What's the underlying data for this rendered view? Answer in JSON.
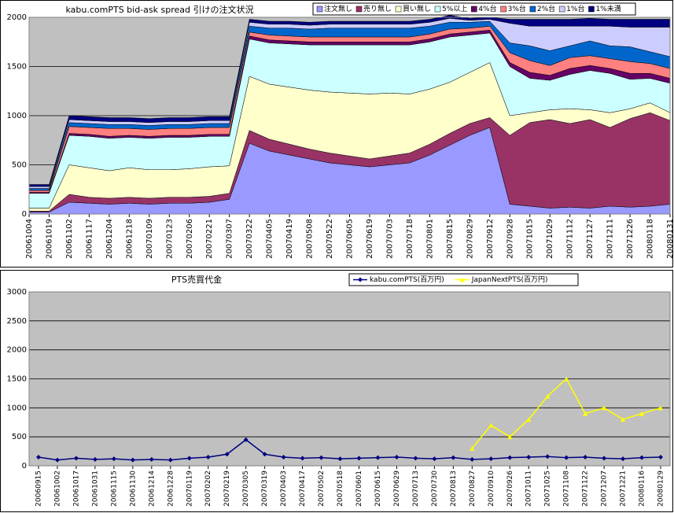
{
  "chart_data": [
    {
      "type": "area",
      "stacked": true,
      "grid": true,
      "title": "kabu.comPTS bid-ask spread 引けの注文状況",
      "categories": [
        "20061004",
        "20061019",
        "20061102",
        "20061117",
        "20061204",
        "20061218",
        "20070109",
        "20070123",
        "20070206",
        "20070221",
        "20070307",
        "20070322",
        "20070405",
        "20070419",
        "20070508",
        "20070522",
        "20070605",
        "20070619",
        "20070703",
        "20070718",
        "20070801",
        "20070815",
        "20070829",
        "20070912",
        "20070928",
        "20071015",
        "20071029",
        "20071112",
        "20071127",
        "20071211",
        "20071226",
        "20080118",
        "20080131"
      ],
      "ylim": [
        0,
        2000
      ],
      "yticks": [
        0,
        500,
        1000,
        1500,
        2000
      ],
      "series": [
        {
          "name": "注文無し",
          "color": "#9999ff",
          "values": [
            20,
            20,
            120,
            110,
            100,
            110,
            100,
            110,
            110,
            120,
            150,
            720,
            640,
            600,
            560,
            520,
            500,
            480,
            500,
            520,
            600,
            700,
            800,
            880,
            100,
            80,
            60,
            70,
            60,
            80,
            70,
            80,
            100
          ]
        },
        {
          "name": "売り無し",
          "color": "#993366",
          "values": [
            10,
            10,
            80,
            60,
            60,
            60,
            60,
            60,
            60,
            60,
            60,
            130,
            120,
            110,
            100,
            100,
            90,
            80,
            90,
            100,
            110,
            120,
            120,
            100,
            700,
            850,
            900,
            850,
            900,
            800,
            900,
            950,
            850
          ]
        },
        {
          "name": "買い無し",
          "color": "#ffffcc",
          "values": [
            30,
            30,
            300,
            300,
            280,
            300,
            290,
            280,
            290,
            300,
            280,
            550,
            560,
            580,
            600,
            620,
            640,
            660,
            640,
            600,
            560,
            520,
            520,
            560,
            200,
            100,
            100,
            150,
            100,
            150,
            100,
            100,
            80
          ]
        },
        {
          "name": "5%以上",
          "color": "#ccffff",
          "values": [
            150,
            150,
            300,
            320,
            330,
            310,
            320,
            330,
            320,
            310,
            300,
            380,
            420,
            440,
            460,
            480,
            490,
            500,
            490,
            500,
            480,
            460,
            380,
            300,
            500,
            350,
            300,
            350,
            400,
            400,
            300,
            250,
            300
          ]
        },
        {
          "name": "4%台",
          "color": "#660066",
          "values": [
            10,
            10,
            20,
            20,
            20,
            20,
            20,
            20,
            20,
            20,
            20,
            30,
            30,
            30,
            30,
            30,
            30,
            30,
            30,
            30,
            30,
            30,
            30,
            30,
            40,
            60,
            50,
            60,
            50,
            50,
            60,
            50,
            50
          ]
        },
        {
          "name": "3%台",
          "color": "#ff8080",
          "values": [
            20,
            20,
            70,
            70,
            80,
            70,
            70,
            70,
            70,
            70,
            70,
            40,
            50,
            50,
            50,
            50,
            50,
            50,
            50,
            50,
            50,
            50,
            40,
            40,
            100,
            120,
            100,
            110,
            100,
            100,
            120,
            100,
            100
          ]
        },
        {
          "name": "2%台",
          "color": "#0066cc",
          "values": [
            20,
            20,
            40,
            40,
            40,
            40,
            40,
            40,
            40,
            40,
            40,
            60,
            70,
            80,
            80,
            90,
            90,
            90,
            90,
            90,
            80,
            70,
            60,
            50,
            100,
            150,
            150,
            120,
            150,
            130,
            150,
            120,
            120
          ]
        },
        {
          "name": "1%台",
          "color": "#ccccff",
          "values": [
            20,
            20,
            30,
            30,
            30,
            30,
            30,
            30,
            30,
            30,
            30,
            40,
            40,
            40,
            40,
            40,
            40,
            40,
            40,
            40,
            40,
            40,
            20,
            20,
            200,
            200,
            250,
            200,
            150,
            200,
            200,
            250,
            300
          ]
        },
        {
          "name": "1%未満",
          "color": "#000080",
          "values": [
            20,
            20,
            40,
            40,
            40,
            40,
            40,
            40,
            40,
            40,
            40,
            30,
            30,
            30,
            30,
            30,
            30,
            30,
            30,
            30,
            30,
            30,
            20,
            20,
            40,
            70,
            70,
            70,
            80,
            70,
            80,
            80,
            80
          ]
        }
      ]
    },
    {
      "type": "line",
      "grid": true,
      "title": "PTS売買代金",
      "categories": [
        "20060915",
        "20061002",
        "20061017",
        "20061031",
        "20061115",
        "20061130",
        "20061214",
        "20061228",
        "20070119",
        "20070202",
        "20070219",
        "20070305",
        "20070319",
        "20070403",
        "20070417",
        "20070502",
        "20070518",
        "20070601",
        "20070615",
        "20070629",
        "20070713",
        "20070730",
        "20070813",
        "20070827",
        "20070910",
        "20070926",
        "20071011",
        "20071025",
        "20071108",
        "20071122",
        "20071207",
        "20071221",
        "20080116",
        "20080129"
      ],
      "ylim": [
        0,
        3000
      ],
      "yticks": [
        0,
        500,
        1000,
        1500,
        2000,
        2500,
        3000
      ],
      "series": [
        {
          "name": "kabu.comPTS(百万円)",
          "color": "#000080",
          "marker": "diamond",
          "values": [
            150,
            100,
            130,
            110,
            120,
            100,
            110,
            100,
            130,
            150,
            200,
            450,
            200,
            150,
            130,
            140,
            120,
            130,
            140,
            150,
            130,
            120,
            140,
            110,
            120,
            140,
            150,
            160,
            140,
            150,
            130,
            120,
            140,
            150
          ]
        },
        {
          "name": "JapanNextPTS(百万円)",
          "color": "#ffff00",
          "marker": "triangle",
          "values": [
            null,
            null,
            null,
            null,
            null,
            null,
            null,
            null,
            null,
            null,
            null,
            null,
            null,
            null,
            null,
            null,
            null,
            null,
            null,
            null,
            null,
            null,
            null,
            300,
            700,
            500,
            800,
            1200,
            1500,
            900,
            1000,
            800,
            900,
            1000
          ]
        }
      ]
    }
  ]
}
